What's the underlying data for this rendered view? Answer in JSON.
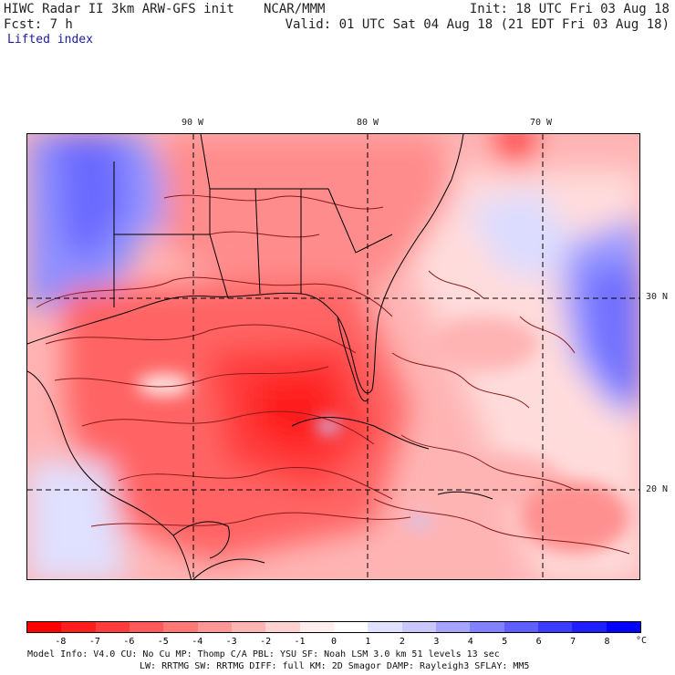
{
  "header": {
    "title": "HIWC Radar II 3km ARW-GFS init",
    "org": "NCAR/MMM",
    "init": "Init: 18 UTC Fri 03 Aug 18",
    "fcst": "Fcst:    7 h",
    "valid": "Valid: 01 UTC Sat 04 Aug 18 (21 EDT Fri 03 Aug 18)",
    "field": "Lifted index"
  },
  "map": {
    "lon_labels": [
      "90 W",
      "80 W",
      "70 W"
    ],
    "lat_labels": [
      "30 N",
      "20 N"
    ],
    "colors": {
      "strong_red": "#ff1a1a",
      "red": "#ff5a5a",
      "mid_red": "#ff8c8c",
      "light_red": "#ffc4c4",
      "pale_red": "#ffe6e6",
      "light_blue": "#c8c8ff",
      "mid_blue": "#8c8cff",
      "blue": "#5a5aff",
      "contour": "#8b1a1a",
      "border": "#000000"
    }
  },
  "colorbar": {
    "ticks": [
      "-8",
      "-7",
      "-6",
      "-5",
      "-4",
      "-3",
      "-2",
      "-1",
      "0",
      "1",
      "2",
      "3",
      "4",
      "5",
      "6",
      "7",
      "8"
    ],
    "unit": "°C",
    "colors": [
      "#ff0000",
      "#ff1e1e",
      "#ff3c3c",
      "#ff5a5a",
      "#ff7878",
      "#ff9696",
      "#ffb4b4",
      "#ffd2d2",
      "#ffeeee",
      "#ffffff",
      "#e0e0ff",
      "#c8c8ff",
      "#a5a5ff",
      "#8282ff",
      "#5f5fff",
      "#3c3cff",
      "#1e1eff",
      "#0000ff"
    ]
  },
  "footer": {
    "line1": "Model Info: V4.0    CU: No Cu    MP: Thomp C/A    PBL: YSU     SF: Noah LSM    3.0 km  51 levels   13 sec",
    "line2": "LW: RRTMG    SW: RRTMG  DIFF: full   KM: 2D Smagor DAMP: Rayleigh3  SFLAY: MM5"
  }
}
